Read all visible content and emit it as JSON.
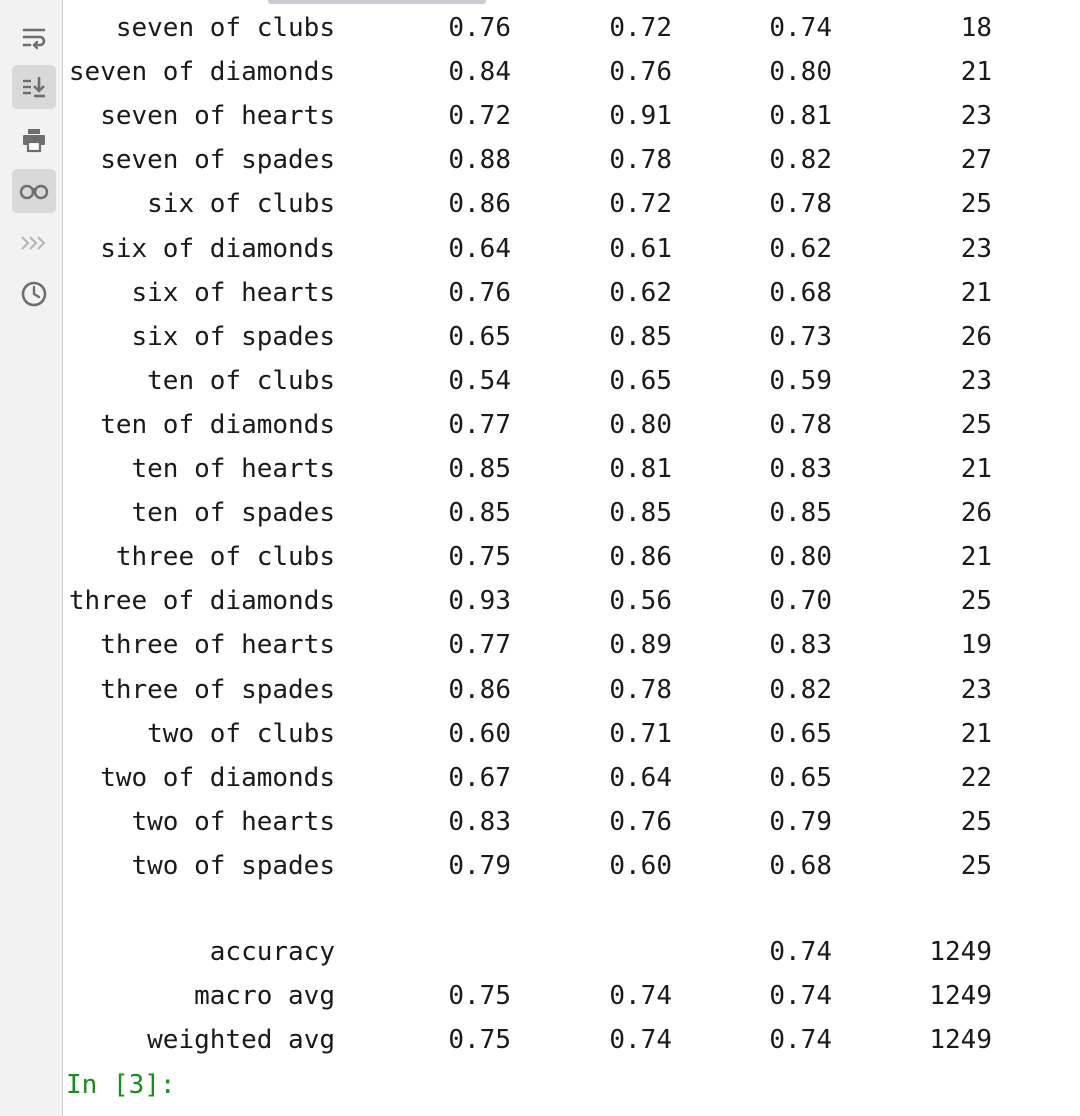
{
  "toolbar": {
    "buttons": [
      {
        "icon": "soft-wrap-icon",
        "active": false
      },
      {
        "icon": "scroll-to-end-icon",
        "active": true
      },
      {
        "icon": "print-icon",
        "active": false
      },
      {
        "icon": "glasses-icon",
        "active": true
      },
      {
        "icon": "triple-chevron-icon",
        "active": false
      },
      {
        "icon": "history-clock-icon",
        "active": false
      }
    ]
  },
  "report": {
    "rows": [
      {
        "label": "seven of clubs",
        "precision": "0.76",
        "recall": "0.72",
        "f1": "0.74",
        "support": "18"
      },
      {
        "label": "seven of diamonds",
        "precision": "0.84",
        "recall": "0.76",
        "f1": "0.80",
        "support": "21"
      },
      {
        "label": "seven of hearts",
        "precision": "0.72",
        "recall": "0.91",
        "f1": "0.81",
        "support": "23"
      },
      {
        "label": "seven of spades",
        "precision": "0.88",
        "recall": "0.78",
        "f1": "0.82",
        "support": "27"
      },
      {
        "label": "six of clubs",
        "precision": "0.86",
        "recall": "0.72",
        "f1": "0.78",
        "support": "25"
      },
      {
        "label": "six of diamonds",
        "precision": "0.64",
        "recall": "0.61",
        "f1": "0.62",
        "support": "23"
      },
      {
        "label": "six of hearts",
        "precision": "0.76",
        "recall": "0.62",
        "f1": "0.68",
        "support": "21"
      },
      {
        "label": "six of spades",
        "precision": "0.65",
        "recall": "0.85",
        "f1": "0.73",
        "support": "26"
      },
      {
        "label": "ten of clubs",
        "precision": "0.54",
        "recall": "0.65",
        "f1": "0.59",
        "support": "23"
      },
      {
        "label": "ten of diamonds",
        "precision": "0.77",
        "recall": "0.80",
        "f1": "0.78",
        "support": "25"
      },
      {
        "label": "ten of hearts",
        "precision": "0.85",
        "recall": "0.81",
        "f1": "0.83",
        "support": "21"
      },
      {
        "label": "ten of spades",
        "precision": "0.85",
        "recall": "0.85",
        "f1": "0.85",
        "support": "26"
      },
      {
        "label": "three of clubs",
        "precision": "0.75",
        "recall": "0.86",
        "f1": "0.80",
        "support": "21"
      },
      {
        "label": "three of diamonds",
        "precision": "0.93",
        "recall": "0.56",
        "f1": "0.70",
        "support": "25"
      },
      {
        "label": "three of hearts",
        "precision": "0.77",
        "recall": "0.89",
        "f1": "0.83",
        "support": "19"
      },
      {
        "label": "three of spades",
        "precision": "0.86",
        "recall": "0.78",
        "f1": "0.82",
        "support": "23"
      },
      {
        "label": "two of clubs",
        "precision": "0.60",
        "recall": "0.71",
        "f1": "0.65",
        "support": "21"
      },
      {
        "label": "two of diamonds",
        "precision": "0.67",
        "recall": "0.64",
        "f1": "0.65",
        "support": "22"
      },
      {
        "label": "two of hearts",
        "precision": "0.83",
        "recall": "0.76",
        "f1": "0.79",
        "support": "25"
      },
      {
        "label": "two of spades",
        "precision": "0.79",
        "recall": "0.60",
        "f1": "0.68",
        "support": "25"
      }
    ],
    "summary": {
      "accuracy": {
        "label": "accuracy",
        "f1": "0.74",
        "support": "1249"
      },
      "macro": {
        "label": "macro avg",
        "precision": "0.75",
        "recall": "0.74",
        "f1": "0.74",
        "support": "1249"
      },
      "weighted": {
        "label": "weighted avg",
        "precision": "0.75",
        "recall": "0.74",
        "f1": "0.74",
        "support": "1249"
      }
    }
  },
  "prompt": "In [3]:"
}
